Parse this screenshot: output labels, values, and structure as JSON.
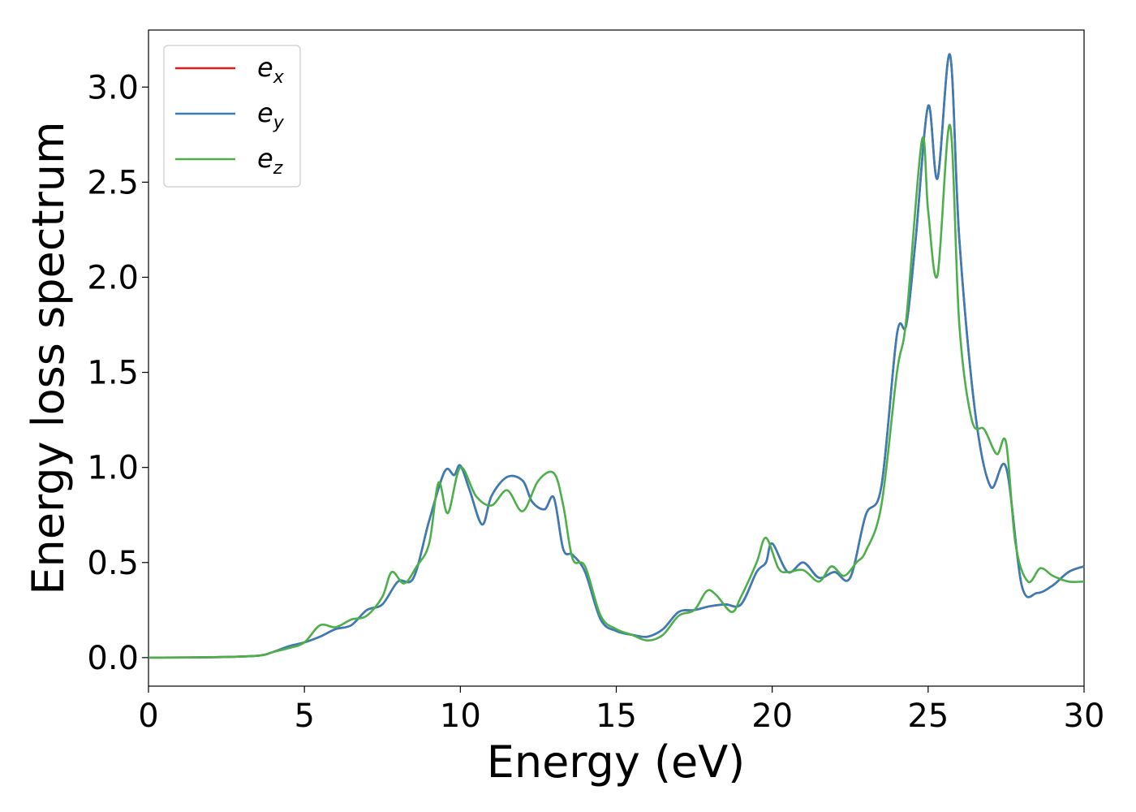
{
  "chart_data": {
    "type": "line",
    "title": "",
    "xlabel": "Energy (eV)",
    "ylabel": "Energy loss spectrum",
    "xlim": [
      0,
      30
    ],
    "ylim": [
      -0.15,
      3.3
    ],
    "xticks": [
      0,
      5,
      10,
      15,
      20,
      25,
      30
    ],
    "xtick_labels": [
      "0",
      "5",
      "10",
      "15",
      "20",
      "25",
      "30"
    ],
    "yticks": [
      0.0,
      0.5,
      1.0,
      1.5,
      2.0,
      2.5,
      3.0
    ],
    "ytick_labels": [
      "0.0",
      "0.5",
      "1.0",
      "1.5",
      "2.0",
      "2.5",
      "3.0"
    ],
    "grid": false,
    "legend_position": "top-left",
    "series": [
      {
        "name": "e",
        "subscript": "x",
        "color": "#e41a1c",
        "x": [
          0,
          2,
          3.5,
          4,
          4.5,
          5,
          5.5,
          6,
          6.5,
          7,
          7.5,
          8,
          8.5,
          9,
          9.5,
          9.8,
          10,
          10.3,
          10.7,
          11,
          11.5,
          12,
          12.3,
          12.7,
          13,
          13.3,
          13.6,
          14,
          14.5,
          15,
          15.5,
          16,
          16.5,
          17,
          17.5,
          18,
          18.5,
          19,
          19.5,
          19.8,
          20,
          20.5,
          21,
          21.5,
          22,
          22.5,
          23,
          23.5,
          24,
          24.3,
          24.6,
          25,
          25.3,
          25.7,
          26,
          26.5,
          27,
          27.5,
          28,
          28.5,
          29,
          29.5,
          30
        ],
        "y": [
          0,
          0.002,
          0.01,
          0.03,
          0.06,
          0.08,
          0.11,
          0.15,
          0.17,
          0.25,
          0.28,
          0.4,
          0.42,
          0.72,
          0.98,
          0.96,
          1.01,
          0.88,
          0.7,
          0.85,
          0.95,
          0.93,
          0.82,
          0.78,
          0.84,
          0.57,
          0.54,
          0.45,
          0.2,
          0.14,
          0.12,
          0.11,
          0.15,
          0.24,
          0.25,
          0.27,
          0.28,
          0.28,
          0.45,
          0.5,
          0.6,
          0.45,
          0.5,
          0.42,
          0.45,
          0.42,
          0.75,
          0.9,
          1.7,
          1.75,
          2.2,
          2.9,
          2.52,
          3.17,
          2.2,
          1.3,
          0.9,
          1.0,
          0.38,
          0.34,
          0.38,
          0.45,
          0.48
        ]
      },
      {
        "name": "e",
        "subscript": "y",
        "color": "#377eb8",
        "x": [
          0,
          2,
          3.5,
          4,
          4.5,
          5,
          5.5,
          6,
          6.5,
          7,
          7.5,
          8,
          8.5,
          9,
          9.5,
          9.8,
          10,
          10.3,
          10.7,
          11,
          11.5,
          12,
          12.3,
          12.7,
          13,
          13.3,
          13.6,
          14,
          14.5,
          15,
          15.5,
          16,
          16.5,
          17,
          17.5,
          18,
          18.5,
          19,
          19.5,
          19.8,
          20,
          20.5,
          21,
          21.5,
          22,
          22.5,
          23,
          23.5,
          24,
          24.3,
          24.6,
          25,
          25.3,
          25.7,
          26,
          26.5,
          27,
          27.5,
          28,
          28.5,
          29,
          29.5,
          30
        ],
        "y": [
          0,
          0.002,
          0.01,
          0.03,
          0.06,
          0.08,
          0.11,
          0.15,
          0.17,
          0.25,
          0.28,
          0.4,
          0.42,
          0.72,
          0.98,
          0.96,
          1.01,
          0.88,
          0.7,
          0.85,
          0.95,
          0.93,
          0.82,
          0.78,
          0.84,
          0.57,
          0.54,
          0.45,
          0.2,
          0.14,
          0.12,
          0.11,
          0.15,
          0.24,
          0.25,
          0.27,
          0.28,
          0.28,
          0.45,
          0.5,
          0.6,
          0.45,
          0.5,
          0.42,
          0.45,
          0.42,
          0.75,
          0.9,
          1.7,
          1.75,
          2.2,
          2.9,
          2.52,
          3.17,
          2.2,
          1.3,
          0.9,
          1.0,
          0.38,
          0.34,
          0.38,
          0.45,
          0.48
        ]
      },
      {
        "name": "e",
        "subscript": "z",
        "color": "#4daf4a",
        "x": [
          0,
          2,
          3.5,
          4,
          4.5,
          5,
          5.5,
          6,
          6.5,
          7,
          7.5,
          7.8,
          8.2,
          8.6,
          9,
          9.3,
          9.6,
          10,
          10.5,
          11,
          11.5,
          12,
          12.5,
          13,
          13.3,
          13.6,
          14,
          14.5,
          15,
          15.5,
          16,
          16.5,
          17,
          17.5,
          17.9,
          18.2,
          18.7,
          19,
          19.5,
          19.8,
          20.2,
          20.5,
          21,
          21.5,
          21.9,
          22.3,
          22.7,
          23,
          23.5,
          24,
          24.3,
          24.8,
          25,
          25.3,
          25.7,
          26,
          26.4,
          26.8,
          27.2,
          27.5,
          27.8,
          28.2,
          28.6,
          29,
          29.5,
          30
        ],
        "y": [
          0,
          0.002,
          0.01,
          0.03,
          0.05,
          0.08,
          0.17,
          0.16,
          0.2,
          0.22,
          0.32,
          0.45,
          0.39,
          0.48,
          0.6,
          0.92,
          0.76,
          1.0,
          0.85,
          0.8,
          0.88,
          0.77,
          0.93,
          0.97,
          0.8,
          0.52,
          0.48,
          0.22,
          0.15,
          0.12,
          0.09,
          0.12,
          0.22,
          0.25,
          0.35,
          0.33,
          0.24,
          0.32,
          0.5,
          0.63,
          0.47,
          0.45,
          0.46,
          0.4,
          0.48,
          0.43,
          0.5,
          0.56,
          0.8,
          1.5,
          1.78,
          2.72,
          2.35,
          2.01,
          2.8,
          1.75,
          1.25,
          1.2,
          1.07,
          1.13,
          0.6,
          0.4,
          0.47,
          0.43,
          0.4,
          0.4
        ]
      }
    ]
  }
}
